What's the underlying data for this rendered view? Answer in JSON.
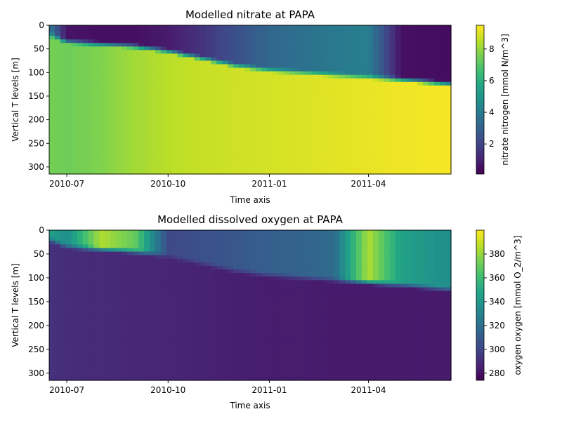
{
  "chart_data": [
    {
      "type": "heatmap",
      "title": "Modelled nitrate at PAPA",
      "xlabel": "Time axis",
      "ylabel": "Vertical T levels [m]",
      "x_range": [
        "2010-06-15",
        "2011-06-15"
      ],
      "x_ticks": [
        "2010-07",
        "2010-10",
        "2011-01",
        "2011-04"
      ],
      "ylim": [
        315,
        0
      ],
      "y_ticks": [
        0,
        50,
        100,
        150,
        200,
        250,
        300
      ],
      "colorbar": {
        "label": "nitrate nitrogen [mmol N/m^3]",
        "range": [
          0.1,
          9.5
        ],
        "ticks": [
          2,
          4,
          6,
          8
        ],
        "colormap": "viridis"
      },
      "field": {
        "months": [
          "2010-06-15",
          "2010-07-01",
          "2010-08-01",
          "2010-09-01",
          "2010-10-01",
          "2010-11-01",
          "2010-12-01",
          "2011-01-01",
          "2011-02-01",
          "2011-03-01",
          "2011-04-01",
          "2011-05-01",
          "2011-06-15"
        ],
        "surface_value": [
          4.0,
          0.6,
          0.5,
          0.5,
          0.8,
          1.5,
          2.4,
          3.2,
          3.6,
          3.9,
          4.1,
          0.5,
          0.4
        ],
        "mixed_layer_depth": [
          20,
          35,
          40,
          45,
          55,
          70,
          85,
          95,
          100,
          105,
          110,
          115,
          125
        ],
        "deep_value": [
          7.5,
          7.4,
          7.7,
          8.2,
          8.5,
          8.7,
          8.8,
          8.9,
          9.0,
          9.1,
          9.2,
          9.3,
          9.4
        ]
      }
    },
    {
      "type": "heatmap",
      "title": "Modelled dissolved oxygen at PAPA",
      "xlabel": "Time axis",
      "ylabel": "Vertical T levels [m]",
      "x_range": [
        "2010-06-15",
        "2011-06-15"
      ],
      "x_ticks": [
        "2010-07",
        "2010-10",
        "2011-01",
        "2011-04"
      ],
      "ylim": [
        315,
        0
      ],
      "y_ticks": [
        0,
        50,
        100,
        150,
        200,
        250,
        300
      ],
      "colorbar": {
        "label": "oxygen oxygen [mmol O_2/m^3]",
        "range": [
          274,
          400
        ],
        "ticks": [
          280,
          300,
          320,
          340,
          360,
          380
        ],
        "colormap": "viridis"
      },
      "field": {
        "months": [
          "2010-06-15",
          "2010-07-01",
          "2010-08-01",
          "2010-09-01",
          "2010-10-01",
          "2010-11-01",
          "2010-12-01",
          "2011-01-01",
          "2011-02-01",
          "2011-03-01",
          "2011-04-01",
          "2011-05-01",
          "2011-06-15"
        ],
        "surface_value": [
          345,
          335,
          385,
          370,
          302,
          305,
          308,
          312,
          314,
          318,
          385,
          345,
          335
        ],
        "mixed_layer_depth": [
          20,
          35,
          40,
          45,
          55,
          70,
          85,
          95,
          100,
          105,
          110,
          115,
          125
        ],
        "deep_value": [
          292,
          290,
          289,
          288,
          287,
          286,
          285,
          284,
          284,
          283,
          283,
          283,
          283
        ]
      }
    }
  ]
}
